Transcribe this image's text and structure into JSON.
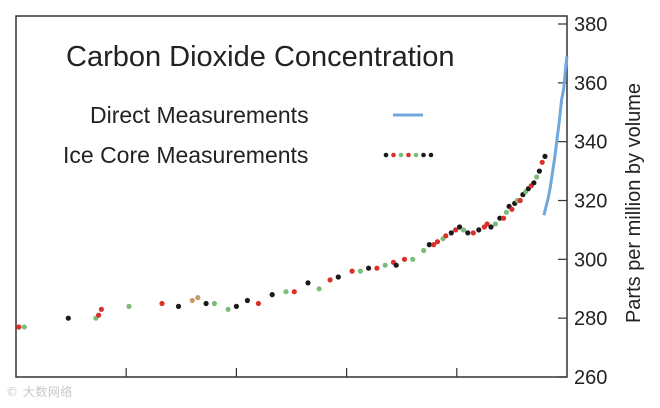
{
  "chart_data": {
    "type": "scatter",
    "title": "Carbon Dioxide Concentration",
    "ylabel": "Parts per million by volume",
    "xlabel": "",
    "ylim": [
      260,
      380
    ],
    "y_ticks": [
      260,
      280,
      300,
      320,
      340,
      360,
      380
    ],
    "xlim": [
      1000,
      2000
    ],
    "x_ticks": [
      1200,
      1400,
      1600,
      1800
    ],
    "grid": false,
    "legend_position": "top-left",
    "series": [
      {
        "name": "Direct Measurements",
        "kind": "line",
        "color": "#6fa8dc",
        "points": [
          [
            1958,
            315
          ],
          [
            1962,
            318
          ],
          [
            1966,
            321
          ],
          [
            1970,
            325
          ],
          [
            1974,
            330
          ],
          [
            1978,
            335
          ],
          [
            1982,
            341
          ],
          [
            1986,
            347
          ],
          [
            1990,
            354
          ],
          [
            1994,
            358
          ],
          [
            1998,
            366
          ],
          [
            2000,
            369
          ]
        ]
      },
      {
        "name": "Ice Core Measurements",
        "kind": "scatter",
        "colors": [
          "#1a1a1a",
          "#d9312a",
          "#7dbb7a",
          "#c89a6a"
        ],
        "points": [
          [
            1005,
            277,
            1
          ],
          [
            1015,
            277,
            2
          ],
          [
            1095,
            280,
            0
          ],
          [
            1145,
            280,
            2
          ],
          [
            1150,
            281,
            1
          ],
          [
            1155,
            283,
            1
          ],
          [
            1205,
            284,
            2
          ],
          [
            1265,
            285,
            1
          ],
          [
            1295,
            284,
            0
          ],
          [
            1320,
            286,
            3
          ],
          [
            1330,
            287,
            3
          ],
          [
            1345,
            285,
            0
          ],
          [
            1360,
            285,
            2
          ],
          [
            1385,
            283,
            2
          ],
          [
            1400,
            284,
            0
          ],
          [
            1420,
            286,
            0
          ],
          [
            1440,
            285,
            1
          ],
          [
            1465,
            288,
            0
          ],
          [
            1490,
            289,
            2
          ],
          [
            1505,
            289,
            1
          ],
          [
            1530,
            292,
            0
          ],
          [
            1550,
            290,
            2
          ],
          [
            1570,
            293,
            1
          ],
          [
            1585,
            294,
            0
          ],
          [
            1610,
            296,
            1
          ],
          [
            1625,
            296,
            2
          ],
          [
            1640,
            297,
            0
          ],
          [
            1655,
            297,
            1
          ],
          [
            1670,
            298,
            2
          ],
          [
            1685,
            299,
            1
          ],
          [
            1690,
            298,
            0
          ],
          [
            1705,
            300,
            1
          ],
          [
            1720,
            300,
            2
          ],
          [
            1740,
            303,
            2
          ],
          [
            1750,
            305,
            0
          ],
          [
            1758,
            305,
            1
          ],
          [
            1765,
            306,
            1
          ],
          [
            1775,
            307,
            2
          ],
          [
            1780,
            308,
            1
          ],
          [
            1790,
            309,
            0
          ],
          [
            1798,
            310,
            1
          ],
          [
            1805,
            311,
            0
          ],
          [
            1812,
            310,
            2
          ],
          [
            1820,
            309,
            0
          ],
          [
            1830,
            309,
            1
          ],
          [
            1840,
            310,
            0
          ],
          [
            1850,
            311,
            1
          ],
          [
            1855,
            312,
            1
          ],
          [
            1862,
            311,
            0
          ],
          [
            1870,
            312,
            2
          ],
          [
            1878,
            314,
            0
          ],
          [
            1885,
            314,
            1
          ],
          [
            1890,
            316,
            2
          ],
          [
            1895,
            318,
            0
          ],
          [
            1900,
            317,
            1
          ],
          [
            1905,
            319,
            0
          ],
          [
            1910,
            320,
            2
          ],
          [
            1915,
            320,
            1
          ],
          [
            1920,
            322,
            0
          ],
          [
            1925,
            323,
            2
          ],
          [
            1930,
            324,
            0
          ],
          [
            1935,
            325,
            1
          ],
          [
            1940,
            326,
            0
          ],
          [
            1945,
            328,
            2
          ],
          [
            1950,
            330,
            0
          ],
          [
            1955,
            333,
            1
          ],
          [
            1960,
            335,
            0
          ]
        ]
      }
    ]
  },
  "watermark": "© 大数网络"
}
